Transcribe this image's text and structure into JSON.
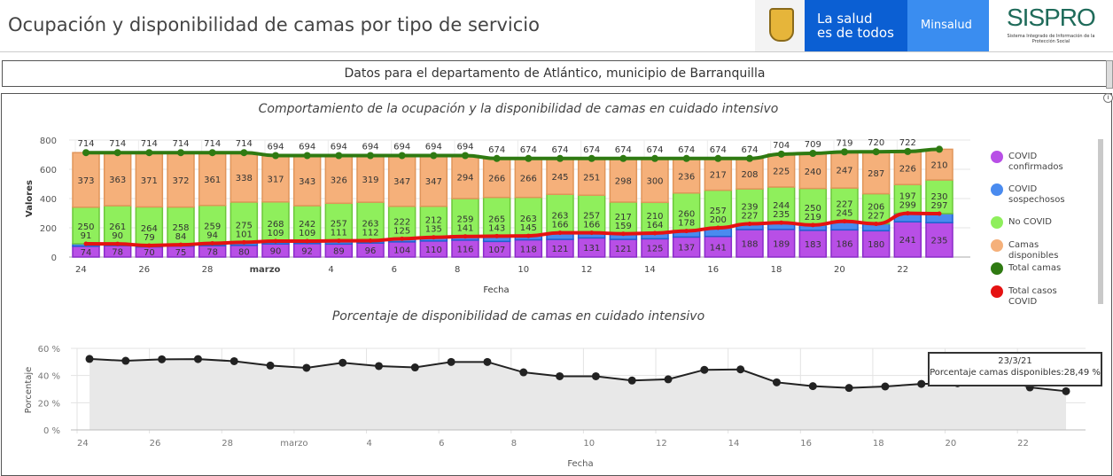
{
  "header": {
    "title": "Ocupación y disponibilidad de camas por tipo de servicio",
    "logos": {
      "escudo": "escudo-colombia",
      "salud_line1": "La salud",
      "salud_line2": "es de todos",
      "minsalud": "Minsalud",
      "sispro": "SISPRO",
      "sispro_sub": "Sistema Integrado de Información de la Protección Social"
    }
  },
  "subheader": {
    "text": "Datos para el departamento de Atlántico, municipio de Barranquilla"
  },
  "colors": {
    "confirmados": "#b84fe6",
    "sospechosos": "#4a8bef",
    "no_covid": "#8fef5c",
    "disponibles": "#f5b07a",
    "total_camas": "#2f7a12",
    "total_covid": "#e51212"
  },
  "chart_data": [
    {
      "type": "bar",
      "stacked": true,
      "title": "Comportamiento de la ocupación y la disponibilidad de camas en cuidado intensivo",
      "xlabel": "Fecha",
      "ylabel": "Valores",
      "ylim": [
        0,
        800
      ],
      "yticks": [
        "0",
        "200",
        "400",
        "600",
        "800"
      ],
      "xticks": [
        "24",
        "26",
        "28",
        "marzo",
        "4",
        "6",
        "8",
        "10",
        "12",
        "14",
        "16",
        "18",
        "20",
        "22"
      ],
      "grid": true,
      "legend_position": "right",
      "dates": [
        "24/2/21",
        "25/2/21",
        "26/2/21",
        "27/2/21",
        "28/2/21",
        "1/3/21",
        "2/3/21",
        "3/3/21",
        "4/3/21",
        "5/3/21",
        "6/3/21",
        "7/3/21",
        "8/3/21",
        "9/3/21",
        "10/3/21",
        "11/3/21",
        "12/3/21",
        "13/3/21",
        "14/3/21",
        "15/3/21",
        "16/3/21",
        "17/3/21",
        "18/3/21",
        "19/3/21",
        "20/3/21",
        "21/3/21",
        "22/3/21",
        "23/3/21"
      ],
      "series": [
        {
          "name": "COVID confirmados",
          "values": [
            74,
            78,
            70,
            75,
            78,
            80,
            90,
            92,
            89,
            96,
            104,
            110,
            116,
            107,
            118,
            121,
            131,
            121,
            125,
            137,
            141,
            188,
            189,
            183,
            186,
            180,
            241,
            235
          ]
        },
        {
          "name": "COVID sospechosos",
          "values": [
            17,
            12,
            9,
            9,
            16,
            21,
            19,
            17,
            22,
            16,
            21,
            25,
            25,
            36,
            27,
            45,
            35,
            38,
            39,
            41,
            59,
            39,
            46,
            36,
            59,
            47,
            58,
            62
          ]
        },
        {
          "name": "No COVID",
          "values": [
            250,
            261,
            264,
            258,
            259,
            275,
            268,
            242,
            257,
            263,
            222,
            212,
            259,
            265,
            263,
            263,
            257,
            217,
            210,
            260,
            257,
            239,
            244,
            250,
            227,
            206,
            197,
            230
          ]
        },
        {
          "name": "Camas disponibles",
          "values": [
            373,
            363,
            371,
            372,
            361,
            338,
            317,
            343,
            326,
            319,
            347,
            347,
            294,
            266,
            266,
            245,
            251,
            298,
            300,
            236,
            217,
            208,
            225,
            240,
            247,
            287,
            226,
            210
          ]
        },
        {
          "name": "Total camas",
          "type": "line",
          "values": [
            714,
            714,
            714,
            714,
            714,
            714,
            694,
            694,
            694,
            694,
            694,
            694,
            694,
            674,
            674,
            674,
            674,
            674,
            674,
            674,
            674,
            674,
            704,
            709,
            719,
            720,
            722,
            737
          ]
        },
        {
          "name": "Total casos COVID",
          "type": "line",
          "values": [
            91,
            90,
            79,
            84,
            94,
            101,
            109,
            109,
            111,
            112,
            125,
            135,
            141,
            143,
            145,
            166,
            166,
            159,
            164,
            178,
            200,
            227,
            235,
            219,
            245,
            227,
            299,
            297
          ]
        }
      ]
    },
    {
      "type": "area",
      "title": "Porcentaje de disponibilidad de camas en cuidado intensivo",
      "xlabel": "Fecha",
      "ylabel": "Porcentaje",
      "ylim": [
        0,
        60
      ],
      "yticks": [
        "0 %",
        "20 %",
        "40 %",
        "60 %"
      ],
      "xticks": [
        "24",
        "26",
        "28",
        "marzo",
        "4",
        "6",
        "8",
        "10",
        "12",
        "14",
        "16",
        "18",
        "20",
        "22"
      ],
      "grid": true,
      "series": [
        {
          "name": "Porcentaje camas disponibles",
          "values": [
            52.24,
            50.84,
            51.96,
            52.1,
            50.56,
            47.34,
            45.68,
            49.42,
            46.97,
            45.97,
            50.0,
            50.0,
            42.36,
            39.47,
            39.47,
            36.35,
            37.24,
            44.21,
            44.51,
            35.01,
            32.2,
            30.86,
            31.96,
            33.85,
            34.35,
            39.86,
            31.3,
            28.49
          ]
        }
      ],
      "tooltip": {
        "date": "23/3/21",
        "text": "Porcentaje camas disponibles:28,49 %"
      }
    }
  ]
}
